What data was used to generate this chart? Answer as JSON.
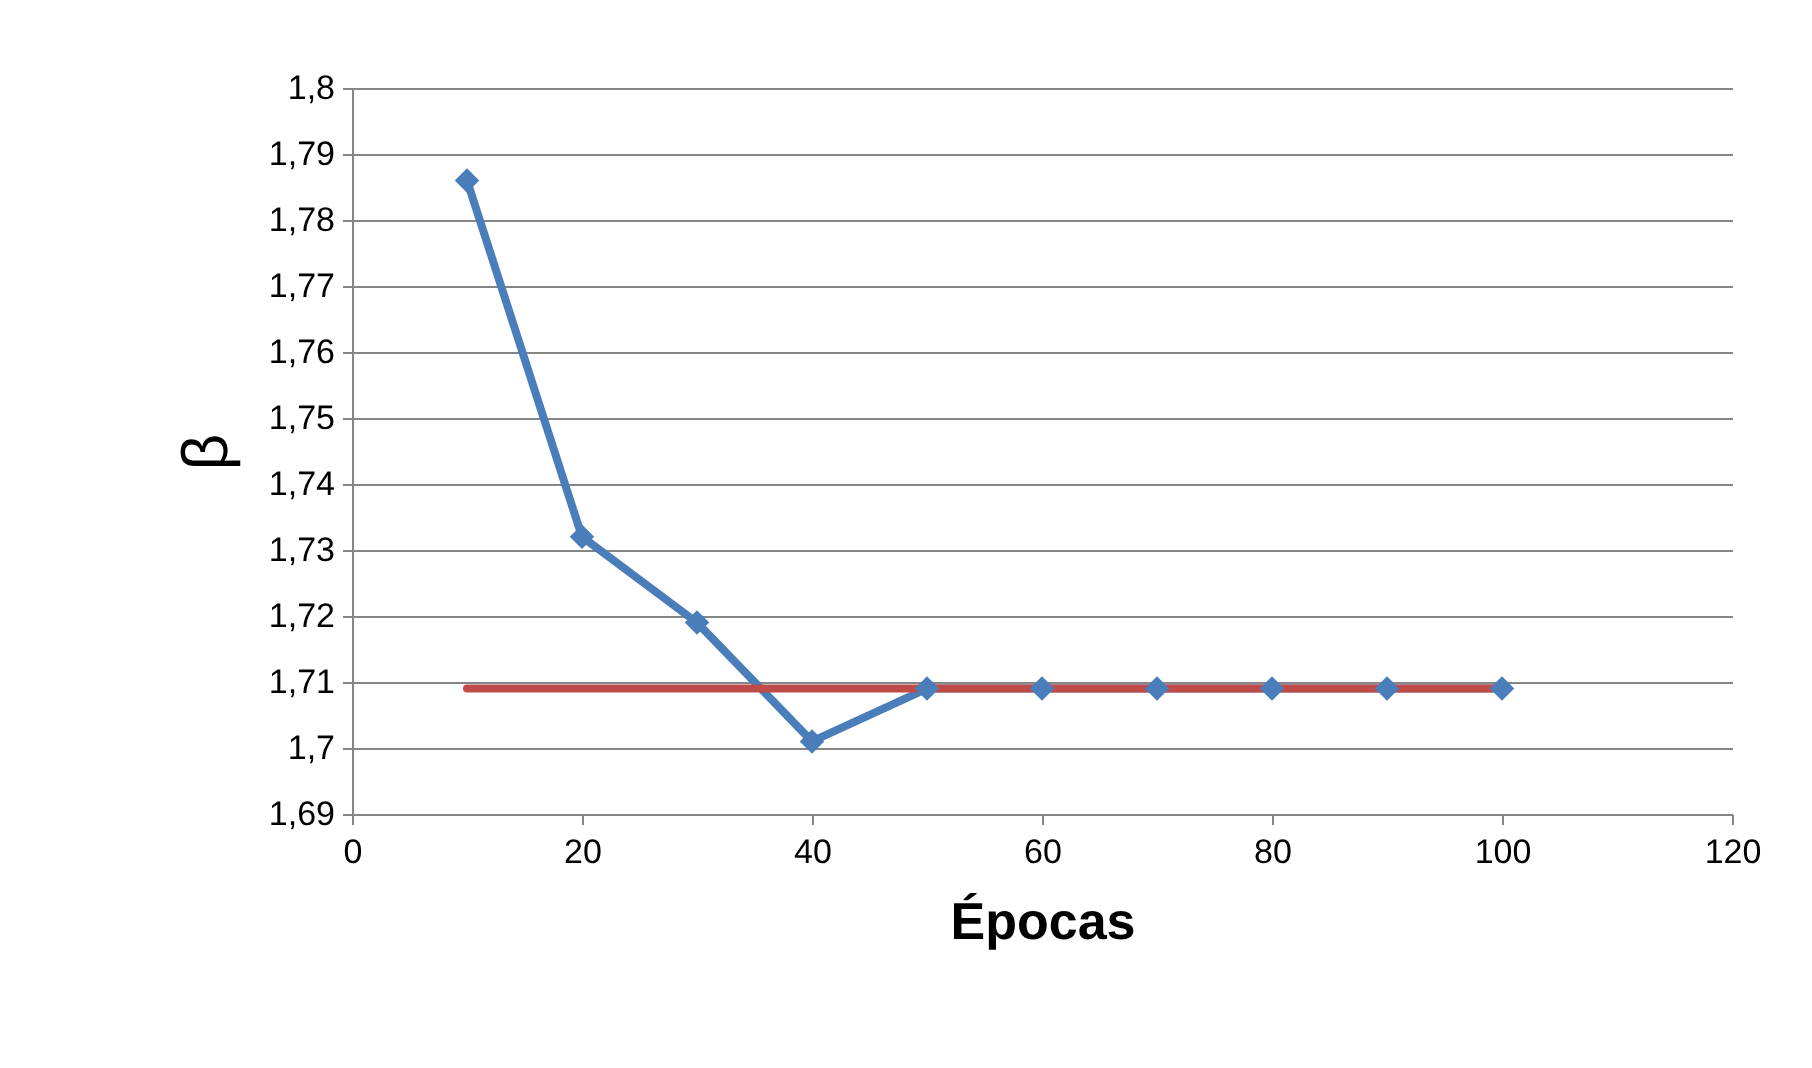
{
  "chart_data": {
    "type": "line",
    "xlabel": "Épocas",
    "ylabel": "β",
    "xlim": [
      0,
      120
    ],
    "xticks": [
      0,
      20,
      40,
      60,
      80,
      100,
      120
    ],
    "ylim": [
      1.69,
      1.8
    ],
    "yticks": [
      {
        "value": 1.69,
        "label": "1,69"
      },
      {
        "value": 1.7,
        "label": "1,7"
      },
      {
        "value": 1.71,
        "label": "1,71"
      },
      {
        "value": 1.72,
        "label": "1,72"
      },
      {
        "value": 1.73,
        "label": "1,73"
      },
      {
        "value": 1.74,
        "label": "1,74"
      },
      {
        "value": 1.75,
        "label": "1,75"
      },
      {
        "value": 1.76,
        "label": "1,76"
      },
      {
        "value": 1.77,
        "label": "1,77"
      },
      {
        "value": 1.78,
        "label": "1,78"
      },
      {
        "value": 1.79,
        "label": "1,79"
      },
      {
        "value": 1.8,
        "label": "1,8"
      }
    ],
    "grid": "y",
    "marker": "diamond",
    "series": [
      {
        "color": "#4a7ebb",
        "x": [
          10,
          20,
          30,
          40,
          50,
          60,
          70,
          80,
          90,
          100
        ],
        "values": [
          1.786,
          1.732,
          1.719,
          1.701,
          1.709,
          1.709,
          1.709,
          1.709,
          1.709,
          1.709
        ]
      },
      {
        "color": "#be4b48",
        "marker": "none",
        "x": [
          10,
          100
        ],
        "values": [
          1.709,
          1.709
        ]
      }
    ]
  }
}
